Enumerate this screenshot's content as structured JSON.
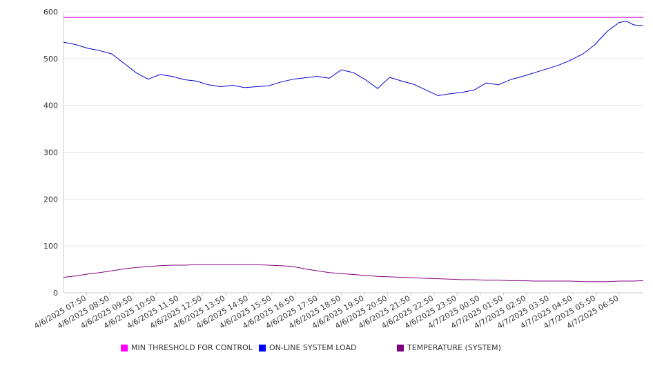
{
  "chart_data": {
    "type": "line",
    "title": "",
    "xlabel": "",
    "ylabel": "",
    "ylim": [
      0,
      600
    ],
    "yticks": [
      0,
      100,
      200,
      300,
      400,
      500,
      600
    ],
    "grid": true,
    "legend_position": "bottom",
    "x_tick_labels": [
      "4/6/2025 07:50",
      "4/6/2025 08:50",
      "4/6/2025 09:50",
      "4/6/2025 10:50",
      "4/6/2025 11:50",
      "4/6/2025 12:50",
      "4/6/2025 13:50",
      "4/6/2025 14:50",
      "4/6/2025 15:50",
      "4/6/2025 16:50",
      "4/6/2025 17:50",
      "4/6/2025 18:50",
      "4/6/2025 19:50",
      "4/6/2025 20:50",
      "4/6/2025 21:50",
      "4/6/2025 22:50",
      "4/6/2025 23:50",
      "4/7/2025 00:50",
      "4/7/2025 01:50",
      "4/7/2025 02:50",
      "4/7/2025 03:50",
      "4/7/2025 04:50",
      "4/7/2025 05:50",
      "4/7/2025 06:50"
    ],
    "x_hours": [
      0,
      0.5,
      1,
      1.5,
      2,
      2.5,
      3,
      3.5,
      4,
      4.5,
      5,
      5.5,
      6,
      6.5,
      7,
      7.5,
      8,
      8.5,
      9,
      9.5,
      10,
      10.5,
      11,
      11.5,
      12,
      12.5,
      13,
      13.5,
      14,
      14.5,
      15,
      15.5,
      16,
      16.5,
      17,
      17.5,
      18,
      18.5,
      19,
      19.5,
      20,
      20.5,
      21,
      21.5,
      22,
      22.5,
      23,
      23.3,
      23.6,
      24
    ],
    "series": [
      {
        "name": "MIN THRESHOLD FOR CONTROL",
        "color": "#cc00cc",
        "legend_color": "#ff00ff",
        "values": [
          588,
          588,
          588,
          588,
          588,
          588,
          588,
          588,
          588,
          588,
          588,
          588,
          588,
          588,
          588,
          588,
          588,
          588,
          588,
          588,
          588,
          588,
          588,
          588,
          588,
          588,
          588,
          588,
          588,
          588,
          588,
          588,
          588,
          588,
          588,
          588,
          588,
          588,
          588,
          588,
          588,
          588,
          588,
          588,
          588,
          588,
          588,
          588,
          588,
          588
        ]
      },
      {
        "name": "ON-LINE SYSTEM LOAD",
        "color": "#0000cc",
        "legend_color": "#0000ff",
        "values": [
          535,
          530,
          522,
          517,
          510,
          490,
          470,
          456,
          466,
          462,
          455,
          452,
          444,
          440,
          443,
          438,
          440,
          442,
          450,
          456,
          459,
          462,
          458,
          476,
          470,
          455,
          436,
          460,
          452,
          445,
          433,
          421,
          425,
          428,
          433,
          448,
          444,
          455,
          462,
          470,
          478,
          486,
          497,
          510,
          530,
          558,
          577,
          580,
          572,
          570
        ]
      },
      {
        "name": "TEMPERATURE (SYSTEM)",
        "color": "#800080",
        "legend_color": "#800080",
        "values": [
          33,
          36,
          40,
          43,
          47,
          51,
          54,
          56,
          58,
          59,
          59,
          60,
          60,
          60,
          60,
          60,
          60,
          59,
          58,
          56,
          51,
          47,
          43,
          41,
          39,
          37,
          35,
          34,
          33,
          32,
          31,
          30,
          29,
          28,
          28,
          27,
          27,
          26,
          26,
          25,
          25,
          25,
          25,
          24,
          24,
          24,
          25,
          25,
          25,
          26
        ]
      }
    ]
  }
}
